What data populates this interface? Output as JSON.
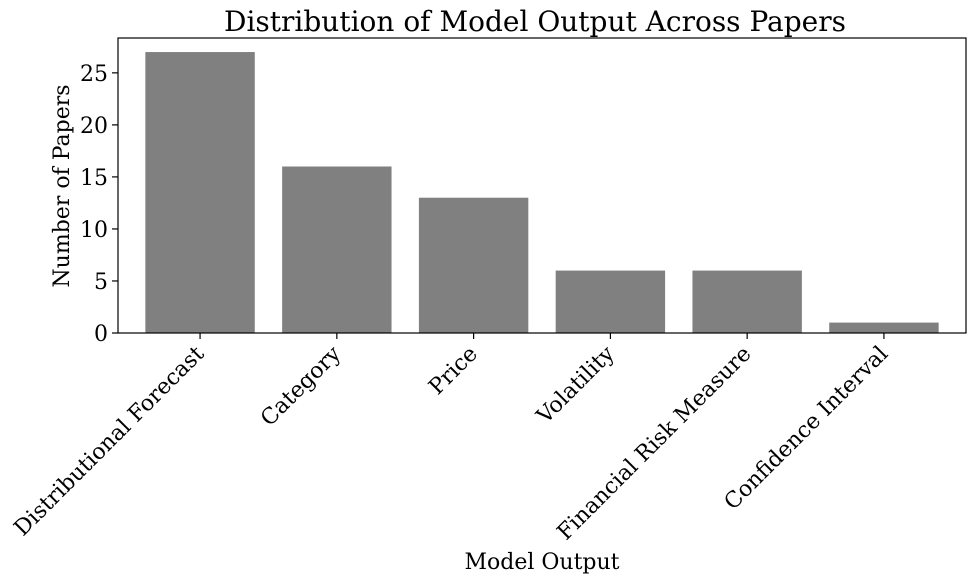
{
  "chart_data": {
    "type": "bar",
    "title": "Distribution of Model Output Across Papers",
    "xlabel": "Model Output",
    "ylabel": "Number of Papers",
    "categories": [
      "Distributional Forecast",
      "Category",
      "Price",
      "Volatility",
      "Financial Risk Measure",
      "Confidence Interval"
    ],
    "values": [
      27,
      16,
      13,
      6,
      6,
      1
    ],
    "ylim": [
      0,
      28.35
    ],
    "yticks": [
      0,
      5,
      10,
      15,
      20,
      25
    ],
    "bar_color": "#808080",
    "grid": false,
    "legend": "none"
  }
}
